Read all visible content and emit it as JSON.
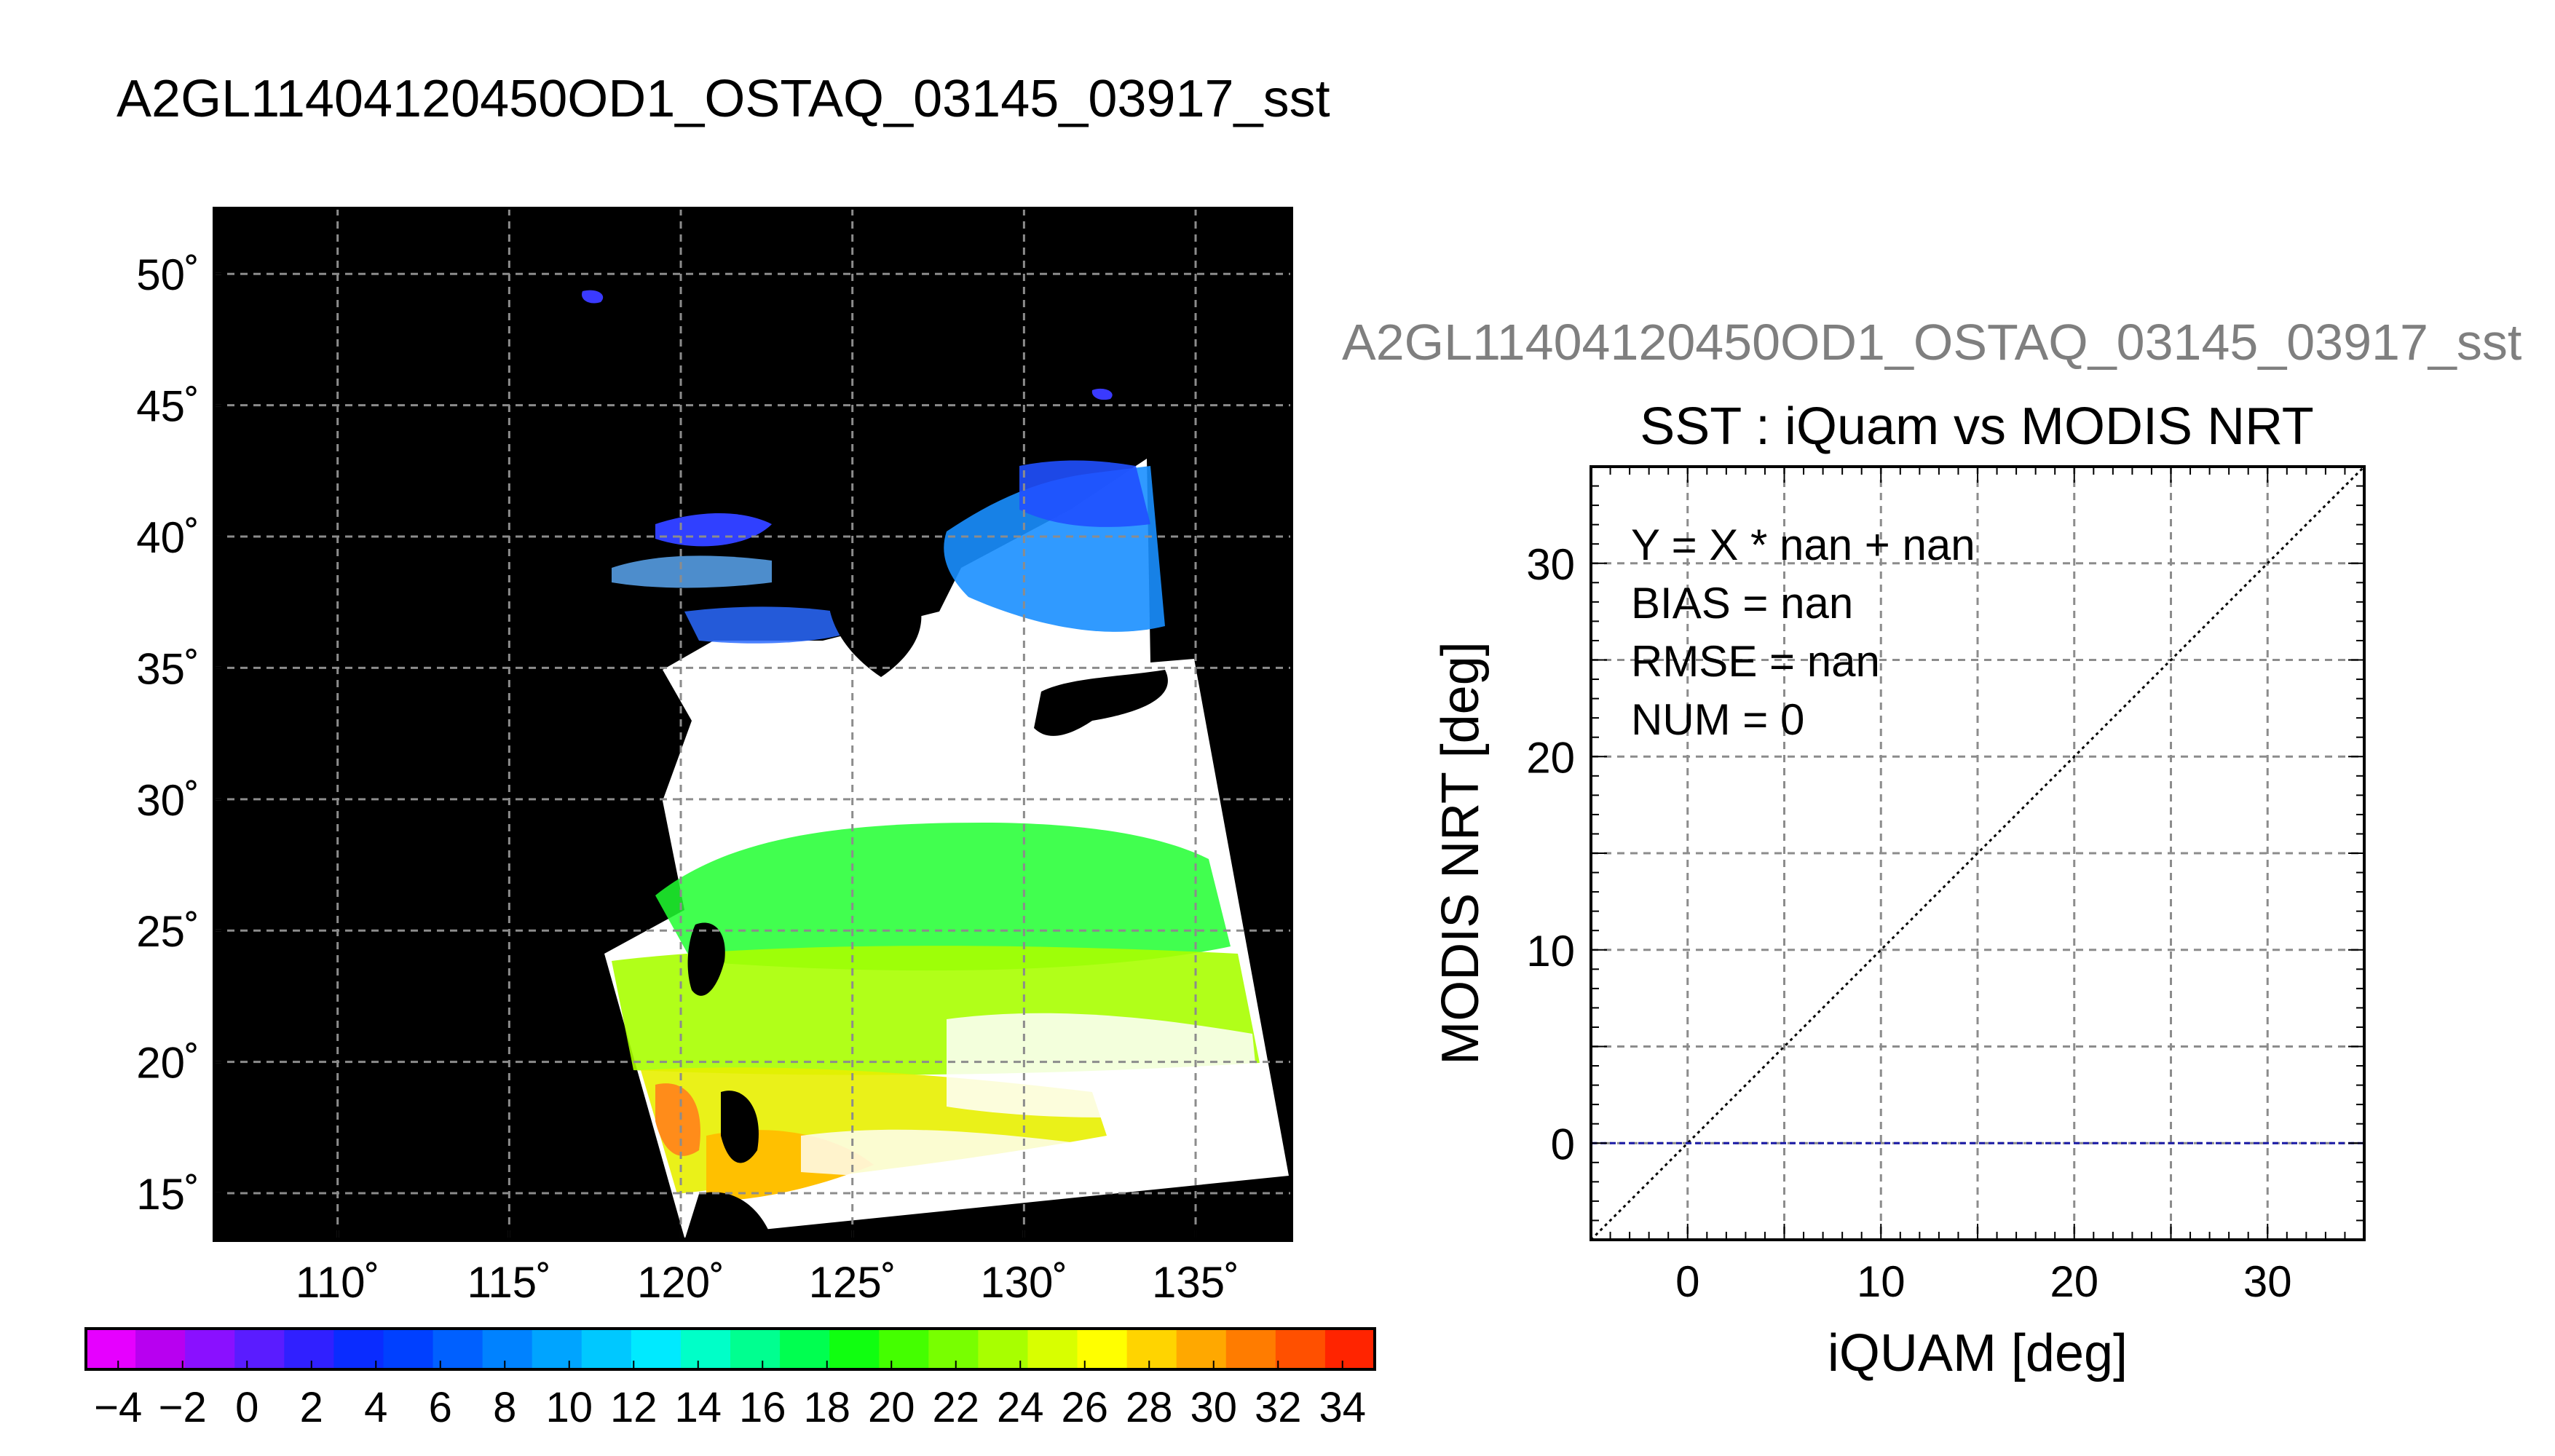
{
  "header": {
    "file_title": "A2GL11404120450OD1_OSTAQ_03145_03917_sst",
    "scatter_file_title": "A2GL11404120450OD1_OSTAQ_03145_03917_sst"
  },
  "chart_data": [
    {
      "type": "heatmap",
      "description_kind": "map",
      "x_ticks": [
        "110˚",
        "115˚",
        "120˚",
        "125˚",
        "130˚",
        "135˚"
      ],
      "x_tick_values": [
        110,
        115,
        120,
        125,
        130,
        135
      ],
      "y_ticks": [
        "50˚",
        "45˚",
        "40˚",
        "35˚",
        "30˚",
        "25˚",
        "20˚",
        "15˚"
      ],
      "y_tick_values": [
        50,
        45,
        40,
        35,
        30,
        25,
        20,
        15
      ],
      "xlim": [
        106.4,
        137.8
      ],
      "ylim": [
        13.2,
        52.5
      ],
      "grid": true,
      "colorbar": {
        "min": -5,
        "max": 35,
        "ticks": [
          -4,
          -2,
          0,
          2,
          4,
          6,
          8,
          10,
          12,
          14,
          16,
          18,
          20,
          22,
          24,
          26,
          28,
          30,
          32,
          34
        ],
        "tick_labels": [
          "−4",
          "−2",
          "0",
          "2",
          "4",
          "6",
          "8",
          "10",
          "12",
          "14",
          "16",
          "18",
          "20",
          "22",
          "24",
          "26",
          "28",
          "30",
          "32",
          "34"
        ],
        "colors": [
          "#e600ff",
          "#b800f0",
          "#8a10ff",
          "#5a1cff",
          "#3020ff",
          "#0a2cff",
          "#0040ff",
          "#0060ff",
          "#0082ff",
          "#00a4ff",
          "#00c8ff",
          "#00eaff",
          "#00ffc8",
          "#00ff90",
          "#00ff50",
          "#10ff10",
          "#44ff00",
          "#78ff00",
          "#a8ff00",
          "#d8ff00",
          "#ffff00",
          "#ffd400",
          "#ffa800",
          "#ff7c00",
          "#ff5000",
          "#ff2400"
        ]
      }
    },
    {
      "type": "scatter",
      "title": "SST : iQuam vs MODIS NRT",
      "xlabel": "iQUAM [deg]",
      "ylabel": "MODIS NRT [deg]",
      "xlim": [
        -5,
        35
      ],
      "ylim": [
        -5,
        35
      ],
      "x_ticks": [
        0,
        10,
        20,
        30
      ],
      "y_ticks": [
        0,
        10,
        20,
        30
      ],
      "grid_step": 5,
      "grid": true,
      "annotations": [
        "Y = X * nan + nan",
        "BIAS = nan",
        "RMSE = nan",
        "NUM = 0"
      ],
      "series": [
        {
          "kind": "reference-line",
          "x": [
            -5,
            35
          ],
          "y": [
            -5,
            35
          ],
          "style": "dotted",
          "color": "#000000"
        },
        {
          "kind": "fit-line",
          "x": [
            -5,
            35
          ],
          "y": [
            0,
            0
          ],
          "style": "dashed",
          "color": "#1a1aa6"
        }
      ],
      "points": []
    }
  ]
}
